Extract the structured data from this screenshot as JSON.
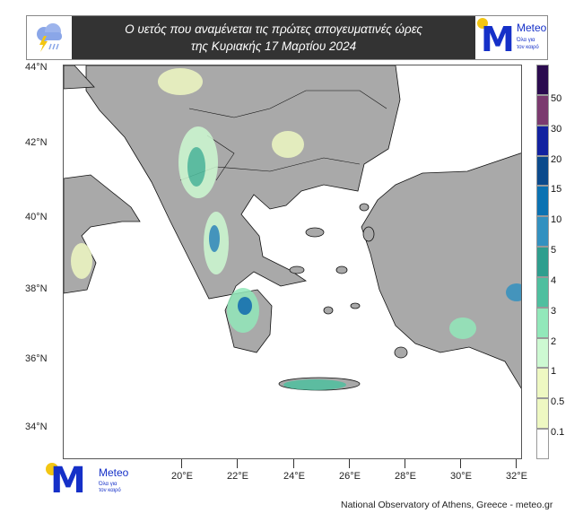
{
  "header": {
    "title_line1": "Ο υετός που αναμένεται τις πρώτες απογευματινές ώρες",
    "title_line2": "της Κυριακής 17 Μαρτίου 2024",
    "weather_icon": "cloud-rain-lightning-icon"
  },
  "logo": {
    "letter": "M",
    "name": "Meteo",
    "tagline1": "Όλα για",
    "tagline2": "τον καιρό"
  },
  "axes": {
    "lat_labels": [
      "44°N",
      "42°N",
      "40°N",
      "38°N",
      "36°N",
      "34°N"
    ],
    "lon_labels": [
      "20°E",
      "22°E",
      "24°E",
      "26°E",
      "28°E",
      "30°E",
      "32°E"
    ]
  },
  "colorbar": {
    "labels": [
      "50",
      "30",
      "20",
      "15",
      "10",
      "5",
      "4",
      "3",
      "2",
      "1",
      "0.5",
      "0.1"
    ],
    "colors": [
      "#2b0b4f",
      "#7b3a6f",
      "#1222a0",
      "#0b4a8c",
      "#0b72b2",
      "#3391c0",
      "#2f9e8e",
      "#4fbf9f",
      "#92e8ba",
      "#cdf9d2",
      "#eef8c2",
      "#eef8c2",
      "#ffffff"
    ]
  },
  "credit": "National Observatory of Athens, Greece - meteo.gr"
}
